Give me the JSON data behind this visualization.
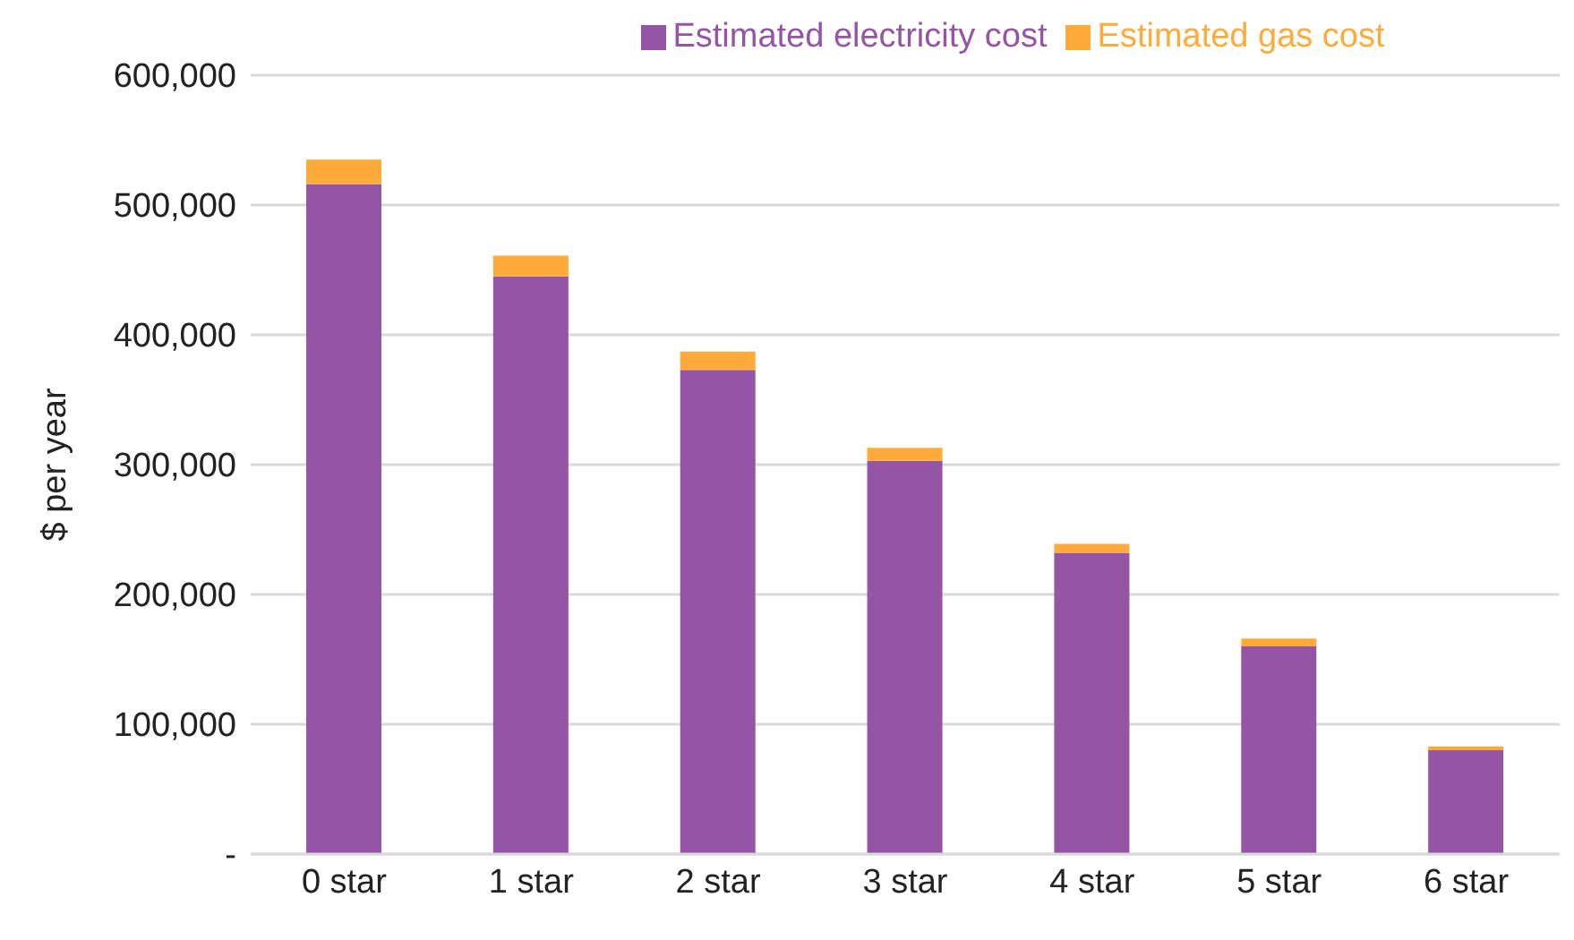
{
  "chart_data": {
    "type": "bar",
    "stacked": true,
    "ylabel": "$ per year",
    "categories": [
      "0 star",
      "1 star",
      "2 star",
      "3 star",
      "4 star",
      "5 star",
      "6 star"
    ],
    "series": [
      {
        "name": "Estimated electricity cost",
        "color": "#9555a5",
        "values": [
          516000,
          445000,
          373000,
          303000,
          232000,
          160000,
          80000
        ]
      },
      {
        "name": "Estimated gas cost",
        "color": "#ffab3c",
        "values": [
          19000,
          16000,
          14000,
          10000,
          7000,
          6000,
          3000
        ]
      }
    ],
    "ylim": [
      0,
      600000
    ],
    "yticks": [
      {
        "value": 0,
        "label": "-"
      },
      {
        "value": 100000,
        "label": "100,000"
      },
      {
        "value": 200000,
        "label": "200,000"
      },
      {
        "value": 300000,
        "label": "300,000"
      },
      {
        "value": 400000,
        "label": "400,000"
      },
      {
        "value": 500000,
        "label": "500,000"
      },
      {
        "value": 600000,
        "label": "600,000"
      }
    ],
    "grid": "y",
    "legend": "top"
  }
}
